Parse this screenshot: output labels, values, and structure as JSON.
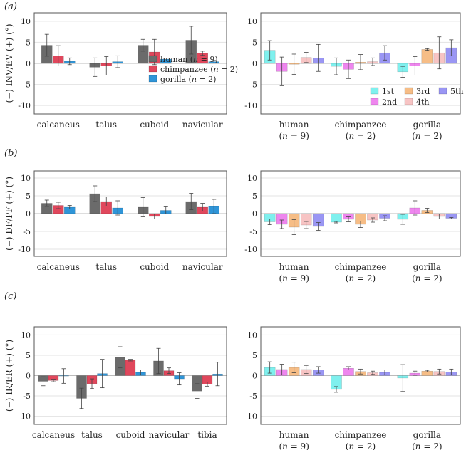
{
  "panel_labels": [
    "(a)",
    "(b)",
    "(c)"
  ],
  "colors": {
    "human": "#6b6b6b",
    "chimpanzee": "#e0475c",
    "gorilla": "#2f95d8",
    "ray_1st": "#7ff0ee",
    "ray_2nd": "#ee86ee",
    "ray_3rd": "#f6bd86",
    "ray_4th": "#f7c4c4",
    "ray_5th": "#9a96f4"
  },
  "chart_data": [
    {
      "id": "a-left",
      "type": "bar",
      "ylabel": "(−) INV/EV (+) (°)",
      "ylim": [
        -12,
        12
      ],
      "yticks": [
        -10,
        -5,
        0,
        5,
        10
      ],
      "categories": [
        "calcaneus",
        "talus",
        "cuboid",
        "navicular"
      ],
      "legend": {
        "placement": "center-right",
        "labels": [
          "human (n = 9)",
          "chimpanzee (n = 2)",
          "gorilla (n = 2)"
        ]
      },
      "series": [
        {
          "name": "human (n = 9)",
          "color_key": "human",
          "values": [
            4.3,
            -0.9,
            4.3,
            5.5
          ],
          "err": [
            2.6,
            2.2,
            1.4,
            3.3
          ]
        },
        {
          "name": "chimpanzee (n = 2)",
          "color_key": "chimpanzee",
          "values": [
            1.8,
            -0.6,
            2.7,
            2.4
          ],
          "err": [
            2.4,
            2.2,
            3.0,
            0.5
          ]
        },
        {
          "name": "gorilla (n = 2)",
          "color_key": "gorilla",
          "values": [
            0.5,
            0.4,
            1.0,
            0.4
          ],
          "err": [
            0.8,
            1.4,
            0.0,
            0.3
          ]
        }
      ]
    },
    {
      "id": "a-right",
      "type": "bar",
      "ylim": [
        -12,
        12
      ],
      "yticks": [
        -10,
        -5,
        0,
        5,
        10
      ],
      "categories": [
        "human",
        "chimpanzee",
        "gorilla"
      ],
      "category_sublabels": [
        "(n = 9)",
        "(n = 2)",
        "(n = 2)"
      ],
      "legend": {
        "placement": "bottom-right",
        "labels": [
          "1st",
          "2nd",
          "3rd",
          "4th",
          "5th"
        ]
      },
      "series": [
        {
          "name": "1st",
          "color_key": "ray_1st",
          "values": [
            3.1,
            -0.7,
            -2.0
          ],
          "err": [
            2.3,
            2.0,
            1.3
          ]
        },
        {
          "name": "2nd",
          "color_key": "ray_2nd",
          "values": [
            -1.9,
            -1.4,
            -0.6
          ],
          "err": [
            3.4,
            2.2,
            2.2
          ]
        },
        {
          "name": "3rd",
          "color_key": "ray_3rd",
          "values": [
            -0.2,
            0.3,
            3.3
          ],
          "err": [
            2.4,
            1.8,
            0.2
          ]
        },
        {
          "name": "4th",
          "color_key": "ray_4th",
          "values": [
            1.4,
            0.4,
            2.5
          ],
          "err": [
            1.2,
            0.9,
            3.8
          ]
        },
        {
          "name": "5th",
          "color_key": "ray_5th",
          "values": [
            1.3,
            2.5,
            3.7
          ],
          "err": [
            3.2,
            1.7,
            1.9
          ]
        }
      ]
    },
    {
      "id": "b-left",
      "type": "bar",
      "ylabel": "(−) DF/PF (+) (°)",
      "ylim": [
        -12,
        12
      ],
      "yticks": [
        -10,
        -5,
        0,
        5,
        10
      ],
      "categories": [
        "calcaneus",
        "talus",
        "cuboid",
        "navicular"
      ],
      "series": [
        {
          "name": "human (n = 9)",
          "color_key": "human",
          "values": [
            2.9,
            5.6,
            1.8,
            3.4
          ],
          "err": [
            0.9,
            2.2,
            2.7,
            2.3
          ]
        },
        {
          "name": "chimpanzee (n = 2)",
          "color_key": "chimpanzee",
          "values": [
            2.3,
            3.4,
            -0.8,
            1.8
          ],
          "err": [
            0.9,
            1.3,
            0.7,
            1.1
          ]
        },
        {
          "name": "gorilla (n = 2)",
          "color_key": "gorilla",
          "values": [
            1.8,
            1.6,
            0.9,
            2.0
          ],
          "err": [
            0.5,
            2.0,
            1.0,
            2.0
          ]
        }
      ]
    },
    {
      "id": "b-right",
      "type": "bar",
      "ylim": [
        -12,
        12
      ],
      "yticks": [
        -10,
        -5,
        0,
        5,
        10
      ],
      "categories": [
        "human",
        "chimpanzee",
        "gorilla"
      ],
      "category_sublabels": [
        "(n = 9)",
        "(n = 2)",
        "(n = 2)"
      ],
      "series": [
        {
          "name": "1st",
          "color_key": "ray_1st",
          "values": [
            -2.3,
            -2.4,
            -1.6
          ],
          "err": [
            0.8,
            0.2,
            1.4
          ]
        },
        {
          "name": "2nd",
          "color_key": "ray_2nd",
          "values": [
            -3.0,
            -1.6,
            1.6
          ],
          "err": [
            1.2,
            0.7,
            2.0
          ]
        },
        {
          "name": "3rd",
          "color_key": "ray_3rd",
          "values": [
            -3.8,
            -3.0,
            0.9
          ],
          "err": [
            2.1,
            0.9,
            0.6
          ]
        },
        {
          "name": "4th",
          "color_key": "ray_4th",
          "values": [
            -3.2,
            -1.8,
            -0.8
          ],
          "err": [
            1.0,
            0.6,
            0.7
          ]
        },
        {
          "name": "5th",
          "color_key": "ray_5th",
          "values": [
            -3.6,
            -1.3,
            -1.3
          ],
          "err": [
            1.1,
            0.7,
            0.2
          ]
        }
      ]
    },
    {
      "id": "c-left",
      "type": "bar",
      "ylabel": "(−) IR/ER (+) (°)",
      "ylim": [
        -12,
        12
      ],
      "yticks": [
        -10,
        -5,
        0,
        5,
        10
      ],
      "categories": [
        "calcaneus",
        "talus",
        "cuboid",
        "navicular",
        "tibia"
      ],
      "series": [
        {
          "name": "human (n = 9)",
          "color_key": "human",
          "values": [
            -1.4,
            -5.6,
            4.5,
            3.6,
            -3.8
          ],
          "err": [
            1.1,
            2.5,
            2.6,
            3.1,
            1.8
          ]
        },
        {
          "name": "chimpanzee (n = 2)",
          "color_key": "chimpanzee",
          "values": [
            -1.2,
            -2.0,
            3.8,
            1.2,
            -2.1
          ],
          "err": [
            0.3,
            1.2,
            0.2,
            0.7,
            0.5
          ]
        },
        {
          "name": "gorilla (n = 2)",
          "color_key": "gorilla",
          "values": [
            -0.1,
            0.5,
            0.8,
            -0.8,
            0.4
          ],
          "err": [
            1.8,
            3.5,
            0.6,
            1.5,
            2.9
          ]
        }
      ]
    },
    {
      "id": "c-right",
      "type": "bar",
      "ylim": [
        -12,
        12
      ],
      "yticks": [
        -10,
        -5,
        0,
        5,
        10
      ],
      "categories": [
        "human",
        "chimpanzee",
        "gorilla"
      ],
      "category_sublabels": [
        "(n = 9)",
        "(n = 2)",
        "(n = 2)"
      ],
      "series": [
        {
          "name": "1st",
          "color_key": "ray_1st",
          "values": [
            2.0,
            -3.4,
            -0.6
          ],
          "err": [
            1.4,
            0.7,
            3.3
          ]
        },
        {
          "name": "2nd",
          "color_key": "ray_2nd",
          "values": [
            1.5,
            1.8,
            0.6
          ],
          "err": [
            1.3,
            0.4,
            0.5
          ]
        },
        {
          "name": "3rd",
          "color_key": "ray_3rd",
          "values": [
            2.0,
            1.0,
            1.1
          ],
          "err": [
            1.3,
            0.6,
            0.2
          ]
        },
        {
          "name": "4th",
          "color_key": "ray_4th",
          "values": [
            1.5,
            0.7,
            1.0
          ],
          "err": [
            1.0,
            0.4,
            0.6
          ]
        },
        {
          "name": "5th",
          "color_key": "ray_5th",
          "values": [
            1.4,
            0.8,
            0.9
          ],
          "err": [
            0.8,
            0.6,
            0.7
          ]
        }
      ]
    }
  ]
}
